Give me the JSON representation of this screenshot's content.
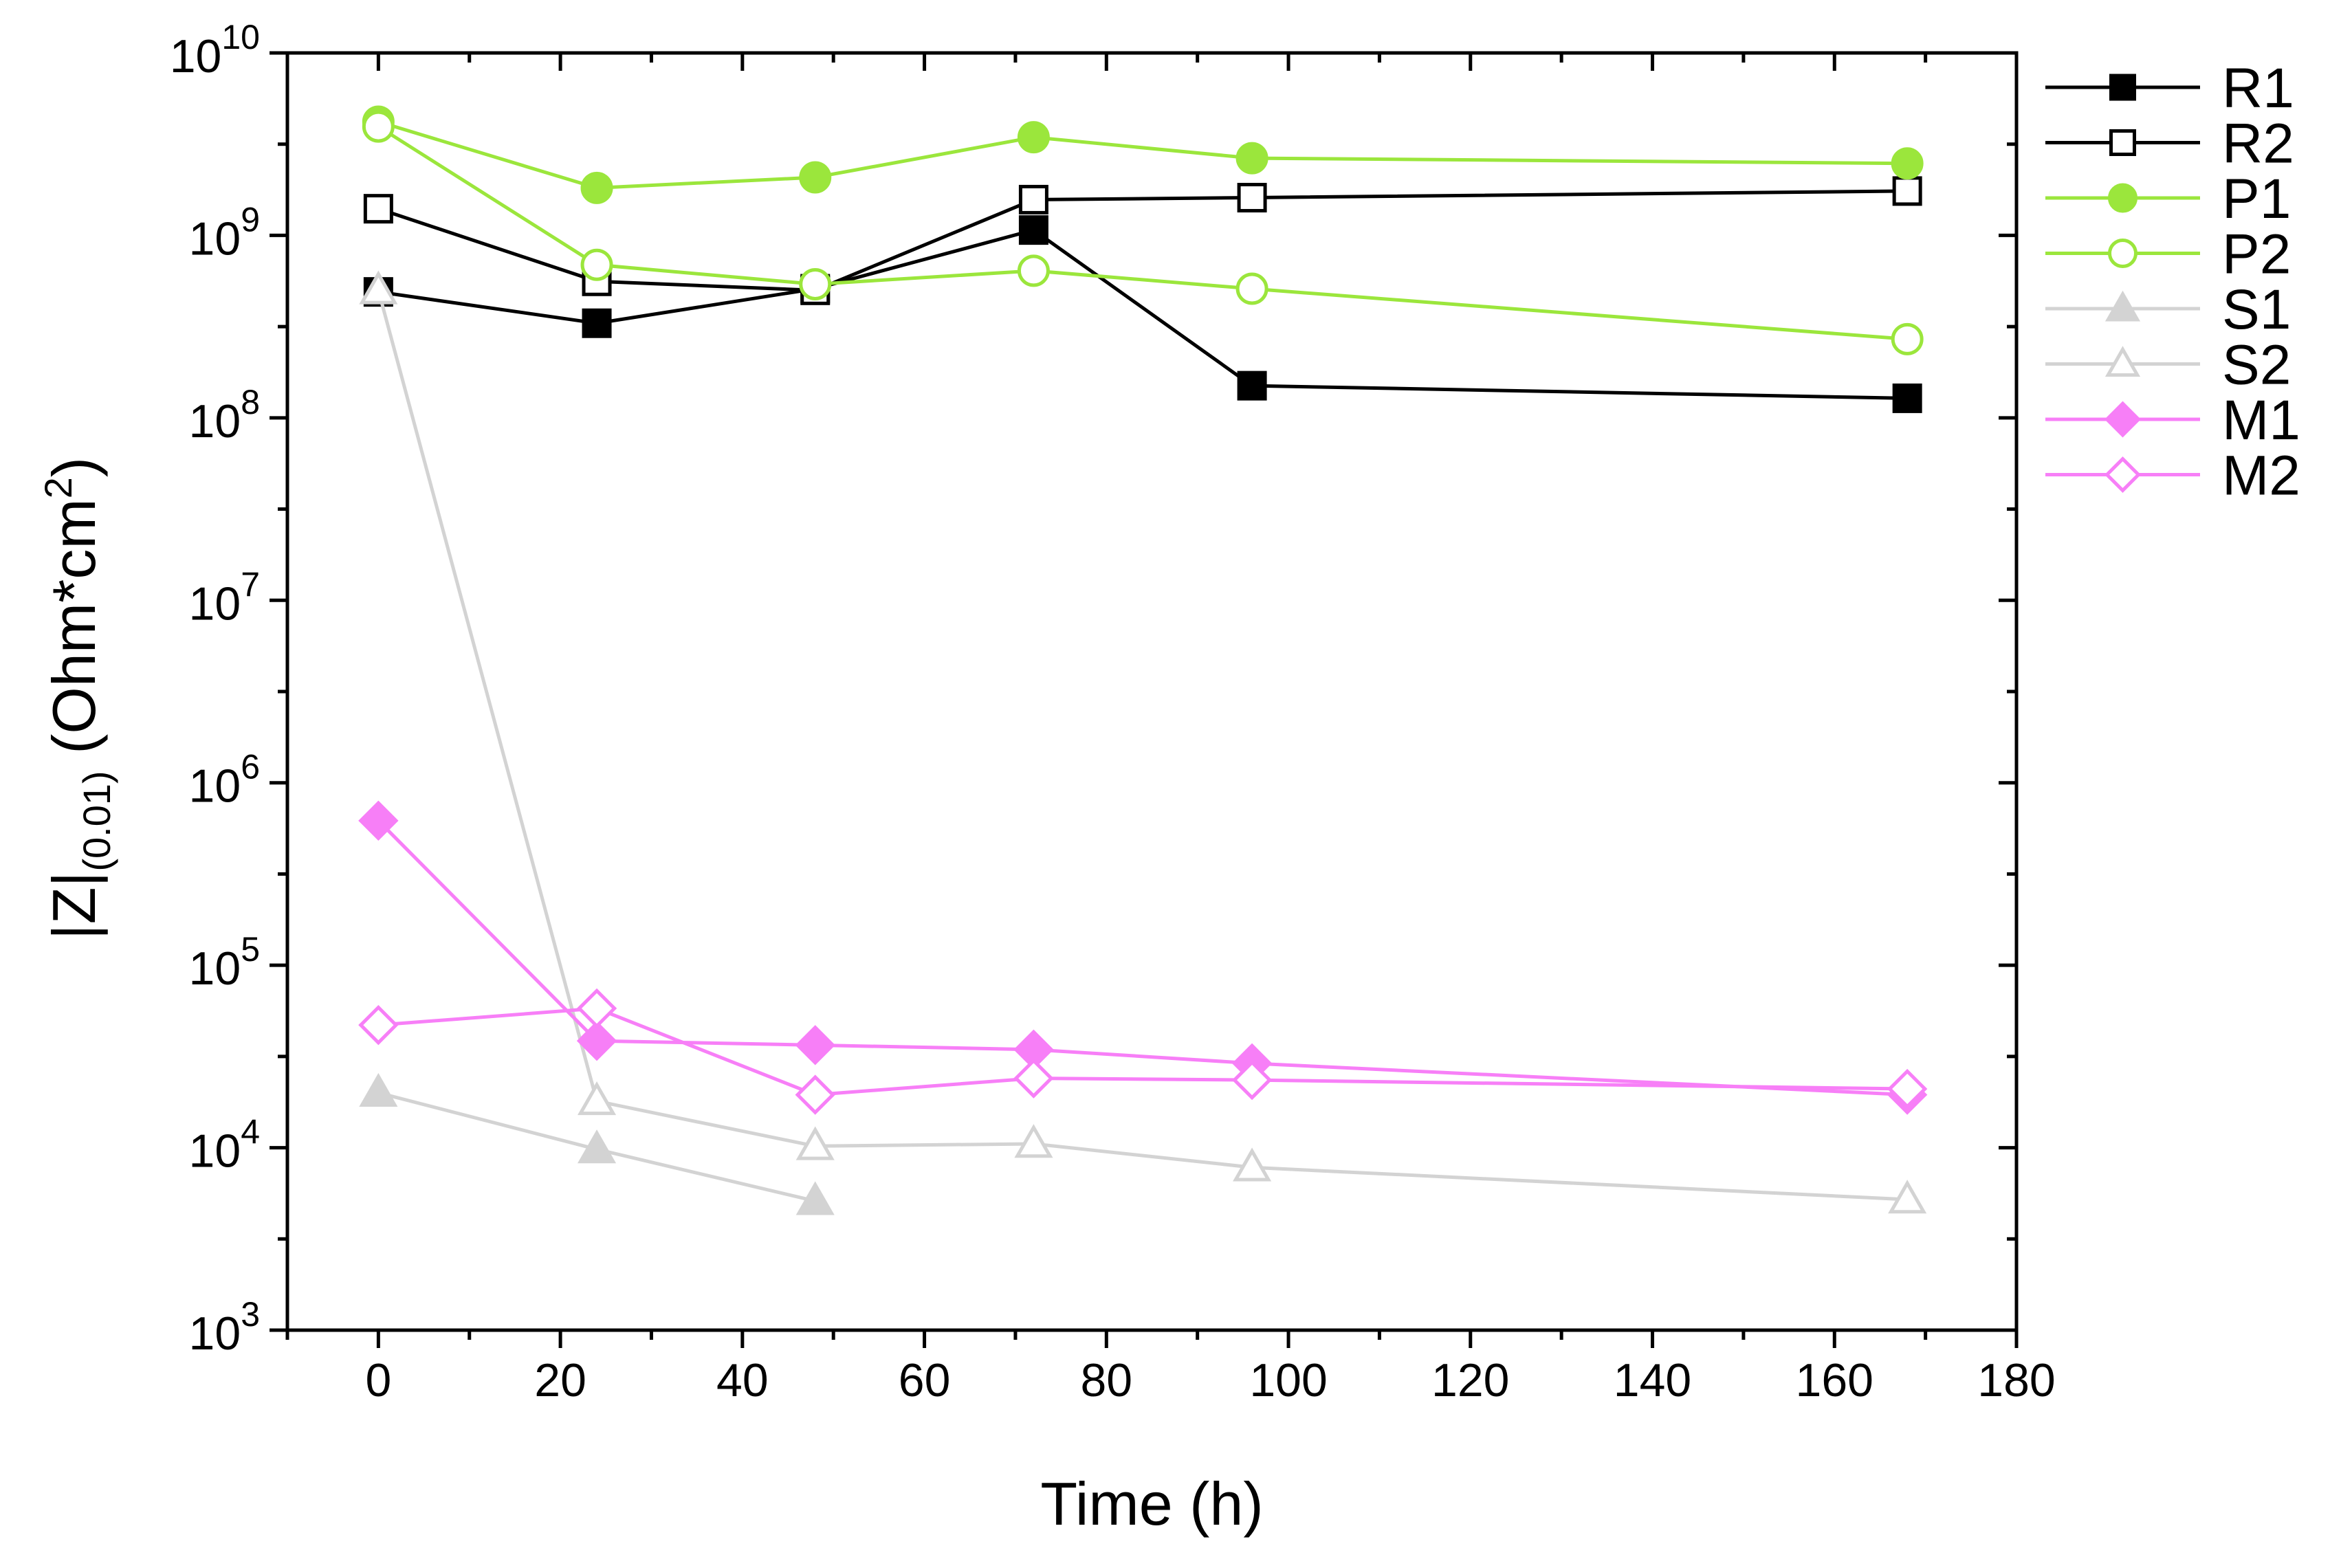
{
  "chart_data": {
    "type": "line",
    "title": "",
    "xlabel": "Time (h)",
    "ylabel": {
      "prefix": "|Z|",
      "subscript": "(0.01)",
      "unit_open": " (Ohm*cm",
      "superscript": "2",
      "unit_close": ")"
    },
    "xlim": [
      -10,
      180
    ],
    "ylim": [
      1000,
      10000000000
    ],
    "yscale": "log",
    "x_ticks": [
      0,
      20,
      40,
      60,
      80,
      100,
      120,
      140,
      160,
      180
    ],
    "y_ticks": [
      {
        "base": "10",
        "exp": "3",
        "value": 1000
      },
      {
        "base": "10",
        "exp": "4",
        "value": 10000
      },
      {
        "base": "10",
        "exp": "5",
        "value": 100000
      },
      {
        "base": "10",
        "exp": "6",
        "value": 1000000
      },
      {
        "base": "10",
        "exp": "7",
        "value": 10000000
      },
      {
        "base": "10",
        "exp": "8",
        "value": 100000000
      },
      {
        "base": "10",
        "exp": "9",
        "value": 1000000000
      },
      {
        "base": "10",
        "exp": "10",
        "value": 10000000000
      }
    ],
    "legend_position": "outside-right",
    "series": [
      {
        "name": "R1",
        "color": "#000000",
        "marker": "square",
        "filled": true,
        "x": [
          0,
          24,
          48,
          72,
          96,
          168
        ],
        "y": [
          490000000,
          330000000,
          510000000,
          1070000000,
          150000000,
          128000000
        ]
      },
      {
        "name": "R2",
        "color": "#000000",
        "marker": "square",
        "filled": false,
        "x": [
          0,
          24,
          48,
          72,
          96,
          168
        ],
        "y": [
          1400000000,
          560000000,
          500000000,
          1570000000,
          1610000000,
          1750000000
        ]
      },
      {
        "name": "P1",
        "color": "#9be63c",
        "marker": "circle",
        "filled": true,
        "x": [
          0,
          24,
          48,
          72,
          96,
          168
        ],
        "y": [
          4200000000,
          1820000000,
          2080000000,
          3450000000,
          2650000000,
          2480000000
        ]
      },
      {
        "name": "P2",
        "color": "#9be63c",
        "marker": "circle",
        "filled": false,
        "x": [
          0,
          24,
          48,
          72,
          96,
          168
        ],
        "y": [
          3950000000,
          690000000,
          540000000,
          640000000,
          510000000,
          270000000
        ]
      },
      {
        "name": "S1",
        "color": "#d3d3d3",
        "marker": "triangle",
        "filled": true,
        "x": [
          0,
          24,
          48
        ],
        "y": [
          20000,
          9800,
          5100
        ]
      },
      {
        "name": "S2",
        "color": "#d3d3d3",
        "marker": "triangle",
        "filled": false,
        "x": [
          0,
          24,
          48,
          72,
          96,
          168
        ],
        "y": [
          500000000,
          18000,
          10200,
          10500,
          7800,
          5200
        ]
      },
      {
        "name": "M1",
        "color": "#f77ff7",
        "marker": "diamond",
        "filled": true,
        "x": [
          0,
          24,
          48,
          72,
          96,
          168
        ],
        "y": [
          620000,
          38500,
          36500,
          34500,
          29000,
          19500
        ]
      },
      {
        "name": "M2",
        "color": "#f77ff7",
        "marker": "diamond",
        "filled": false,
        "x": [
          0,
          24,
          48,
          72,
          96,
          168
        ],
        "y": [
          47000,
          58000,
          19500,
          24000,
          23500,
          21000
        ]
      }
    ]
  }
}
